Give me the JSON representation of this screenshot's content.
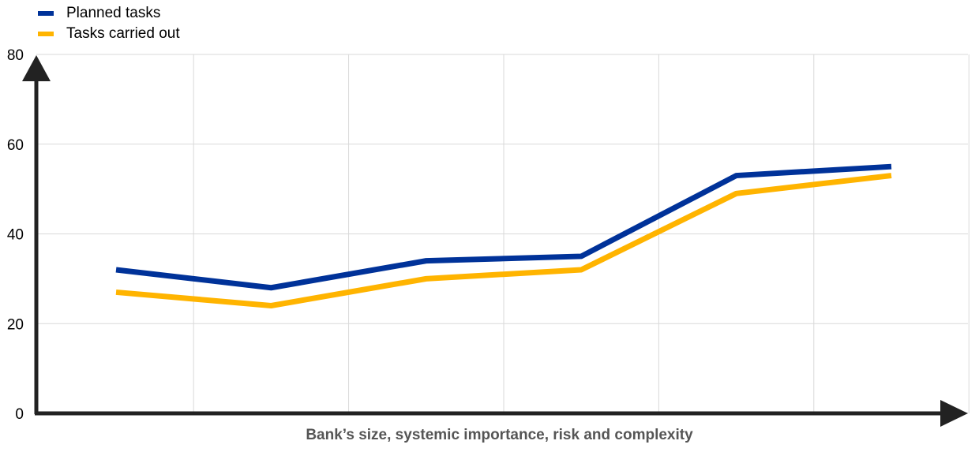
{
  "chart_data": {
    "type": "line",
    "x": [
      1,
      2,
      3,
      4,
      5,
      6
    ],
    "ylim": [
      0,
      80
    ],
    "yticks": [
      "0",
      "20",
      "40",
      "60",
      "80"
    ],
    "xlabel": "Bank’s size, systemic importance, risk and complexity",
    "grid": true,
    "legend_position": "top-left",
    "series": [
      {
        "name": "Planned tasks",
        "color": "#003299",
        "values": [
          32,
          28,
          34,
          35,
          53,
          55
        ]
      },
      {
        "name": "Tasks carried out",
        "color": "#FFB400",
        "values": [
          27,
          24,
          30,
          32,
          49,
          53
        ]
      }
    ]
  }
}
